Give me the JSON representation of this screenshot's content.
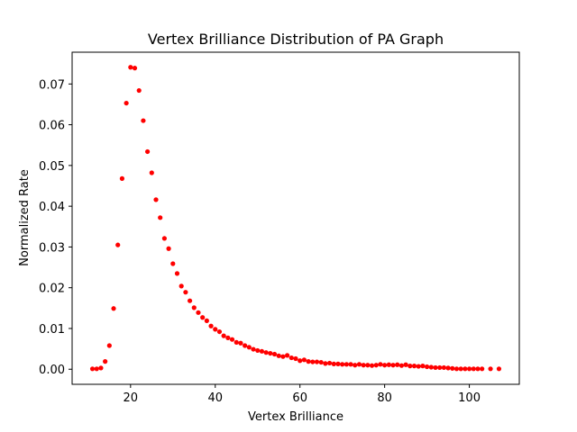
{
  "chart_data": {
    "type": "scatter",
    "title": "Vertex Brilliance Distribution of PA Graph",
    "xlabel": "Vertex Brilliance",
    "ylabel": "Normalized Rate",
    "xlim": [
      6.2,
      111.8
    ],
    "ylim": [
      -0.0037,
      0.0778
    ],
    "xticks": [
      20,
      40,
      60,
      80,
      100
    ],
    "yticks": [
      0.0,
      0.01,
      0.02,
      0.03,
      0.04,
      0.05,
      0.06,
      0.07
    ],
    "ytick_labels": [
      "0.00",
      "0.01",
      "0.02",
      "0.03",
      "0.04",
      "0.05",
      "0.06",
      "0.07"
    ],
    "grid": false,
    "marker_color": "#ff0000",
    "series": [
      {
        "x": [
          11,
          12,
          13,
          14,
          15,
          16,
          17,
          18,
          19,
          20,
          21,
          22,
          23,
          24,
          25,
          26,
          27,
          28,
          29,
          30,
          31,
          32,
          33,
          34,
          35,
          36,
          37,
          38,
          39,
          40,
          41,
          42,
          43,
          44,
          45,
          46,
          47,
          48,
          49,
          50,
          51,
          52,
          53,
          54,
          55,
          56,
          57,
          58,
          59,
          60,
          61,
          62,
          63,
          64,
          65,
          66,
          67,
          68,
          69,
          70,
          71,
          72,
          73,
          74,
          75,
          76,
          77,
          78,
          79,
          80,
          81,
          82,
          83,
          84,
          85,
          86,
          87,
          88,
          89,
          90,
          91,
          92,
          93,
          94,
          95,
          96,
          97,
          98,
          99,
          100,
          101,
          102,
          103,
          105,
          107
        ],
        "y": [
          0.0001,
          0.0001,
          0.0003,
          0.0019,
          0.0058,
          0.0149,
          0.0305,
          0.0468,
          0.0653,
          0.0741,
          0.0739,
          0.0684,
          0.061,
          0.0534,
          0.0482,
          0.0416,
          0.0372,
          0.0321,
          0.0296,
          0.0259,
          0.0235,
          0.0204,
          0.0189,
          0.0168,
          0.0151,
          0.0139,
          0.0127,
          0.0119,
          0.0106,
          0.0098,
          0.0092,
          0.0082,
          0.0077,
          0.0073,
          0.0066,
          0.0064,
          0.0058,
          0.0054,
          0.0049,
          0.0046,
          0.0044,
          0.0041,
          0.0039,
          0.0037,
          0.0033,
          0.0031,
          0.0034,
          0.0028,
          0.0026,
          0.0021,
          0.0023,
          0.0019,
          0.0018,
          0.0018,
          0.0017,
          0.0014,
          0.0015,
          0.0013,
          0.0013,
          0.0012,
          0.0012,
          0.0012,
          0.001,
          0.0012,
          0.001,
          0.001,
          0.0009,
          0.001,
          0.0012,
          0.001,
          0.0011,
          0.001,
          0.0011,
          0.0009,
          0.0011,
          0.0008,
          0.0008,
          0.0007,
          0.0008,
          0.0006,
          0.0005,
          0.0004,
          0.0004,
          0.0004,
          0.0003,
          0.0002,
          0.0001,
          0.0001,
          0.0001,
          0.0001,
          0.0001,
          0.0001,
          0.0001,
          0.0001,
          0.0001
        ]
      }
    ]
  }
}
